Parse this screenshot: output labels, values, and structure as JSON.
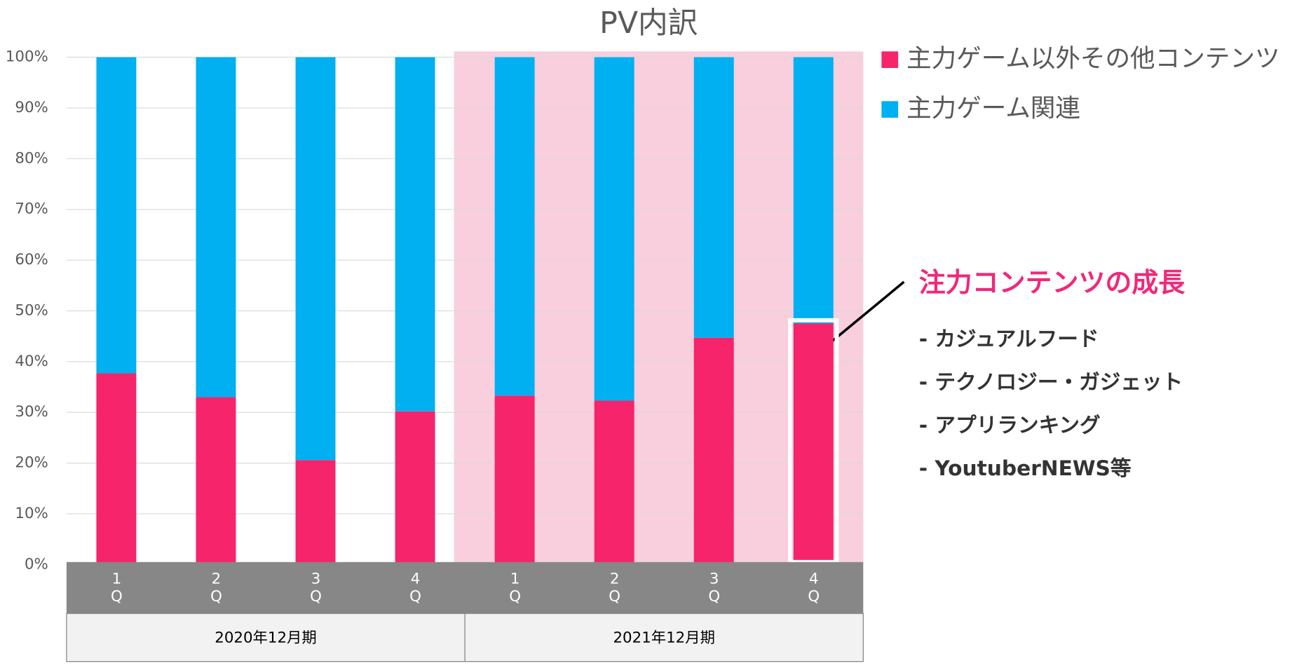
{
  "chart_data": {
    "type": "stacked_bar",
    "title": "PV内訳",
    "categories": [
      "1Q",
      "2Q",
      "3Q",
      "4Q",
      "1Q",
      "2Q",
      "3Q",
      "4Q"
    ],
    "groups": [
      {
        "label": "2020年12月期",
        "span": 4
      },
      {
        "label": "2021年12月期",
        "span": 4
      }
    ],
    "series": [
      {
        "name": "主力ゲーム以外その他コンテンツ",
        "color": "#f5246b",
        "values": [
          37.7,
          33,
          20.6,
          30.2,
          33.3,
          32.3,
          44.7,
          47.5
        ]
      },
      {
        "name": "主力ゲーム関連",
        "color": "#00b0f0",
        "values": [
          62.3,
          67,
          79.4,
          69.8,
          66.7,
          67.7,
          55.3,
          52.5
        ]
      }
    ],
    "ylim": [
      0,
      100
    ],
    "yticks": [
      {
        "value": 0,
        "label": "0%"
      },
      {
        "value": 10,
        "label": "10%"
      },
      {
        "value": 20,
        "label": "20%"
      },
      {
        "value": 30,
        "label": "30%"
      },
      {
        "value": 40,
        "label": "40%"
      },
      {
        "value": 50,
        "label": "50%"
      },
      {
        "value": 60,
        "label": "60%"
      },
      {
        "value": 70,
        "label": "70%"
      },
      {
        "value": 80,
        "label": "80%"
      },
      {
        "value": 90,
        "label": "90%"
      },
      {
        "value": 100,
        "label": "100%"
      }
    ],
    "grid": true,
    "annotation": {
      "heading": "注力コンテンツの成長",
      "items": [
        "- カジュアルフード",
        "- テクノロジー・ガジェット",
        "- アプリランキング",
        "- YoutuberNEWS等"
      ]
    }
  }
}
